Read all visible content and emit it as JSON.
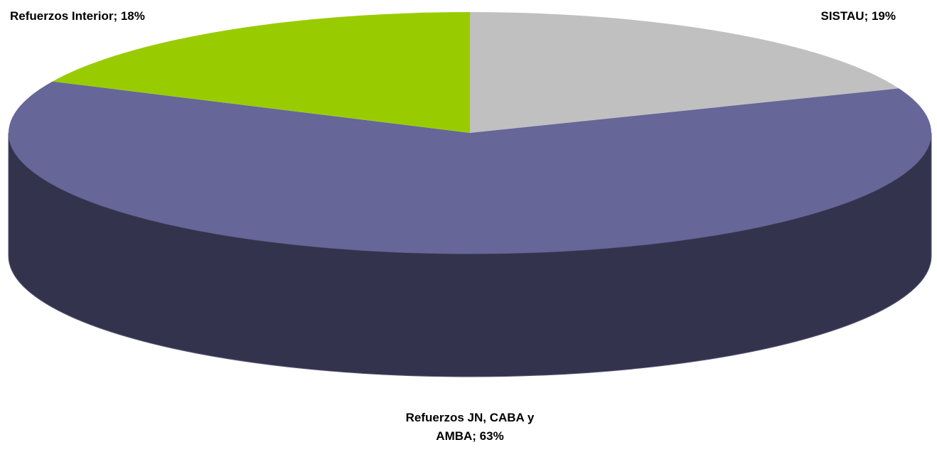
{
  "chart_data": {
    "type": "pie3d",
    "values": [
      19,
      63,
      18
    ],
    "value_labels": [
      "SISTAU; 19%",
      "Refuerzos JN, CABA y AMBA; 63%",
      "Refuerzos Interior; 18%"
    ],
    "colors": [
      "#c0c0c0",
      "#666699",
      "#99cc00"
    ]
  }
}
